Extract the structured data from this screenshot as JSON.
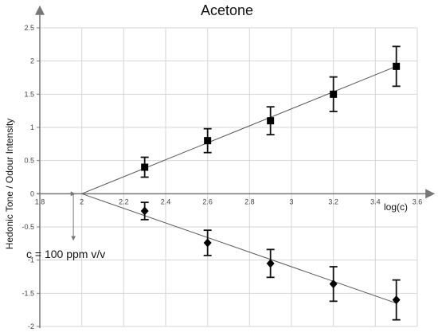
{
  "chart_data": {
    "type": "scatter",
    "title": "Acetone",
    "xlabel": "log(c)",
    "ylabel": "Hedonic Tone  /  Odour Intensity",
    "xlim": [
      1.8,
      3.6
    ],
    "ylim": [
      -2,
      2.5
    ],
    "x_ticks": [
      "1.8",
      "2",
      "2.2",
      "2.4",
      "2.6",
      "2.8",
      "3",
      "3.2",
      "3.4",
      "3.6"
    ],
    "y_ticks": [
      "2.5",
      "2",
      "1.5",
      "1",
      "0.5",
      "0",
      "-0.5",
      "-1",
      "-1.5",
      "-2"
    ],
    "x_tick_values": [
      1.8,
      2.0,
      2.2,
      2.4,
      2.6,
      2.8,
      3.0,
      3.2,
      3.4,
      3.6
    ],
    "y_tick_values": [
      2.5,
      2.0,
      1.5,
      1.0,
      0.5,
      0.0,
      -0.5,
      -1.0,
      -1.5,
      -2.0
    ],
    "grid": true,
    "series": [
      {
        "marker": "square",
        "x": [
          2.3,
          2.6,
          2.9,
          3.2,
          3.5
        ],
        "y": [
          0.4,
          0.8,
          1.1,
          1.5,
          1.92
        ],
        "error": [
          0.15,
          0.18,
          0.21,
          0.26,
          0.3
        ],
        "fit_line": {
          "x": [
            2.0,
            3.5
          ],
          "y": [
            0.0,
            1.92
          ]
        }
      },
      {
        "marker": "diamond",
        "x": [
          2.3,
          2.6,
          2.9,
          3.2,
          3.5
        ],
        "y": [
          -0.26,
          -0.74,
          -1.05,
          -1.36,
          -1.6
        ],
        "error": [
          0.13,
          0.19,
          0.21,
          0.26,
          0.3
        ],
        "fit_line": {
          "x": [
            2.0,
            3.5
          ],
          "y": [
            0.0,
            -1.65
          ]
        }
      }
    ],
    "annotation": {
      "text": "c = 100 ppm v/v",
      "arrow_x": 1.96,
      "arrow_from_y": 0.0,
      "arrow_to_y": -0.7
    }
  }
}
